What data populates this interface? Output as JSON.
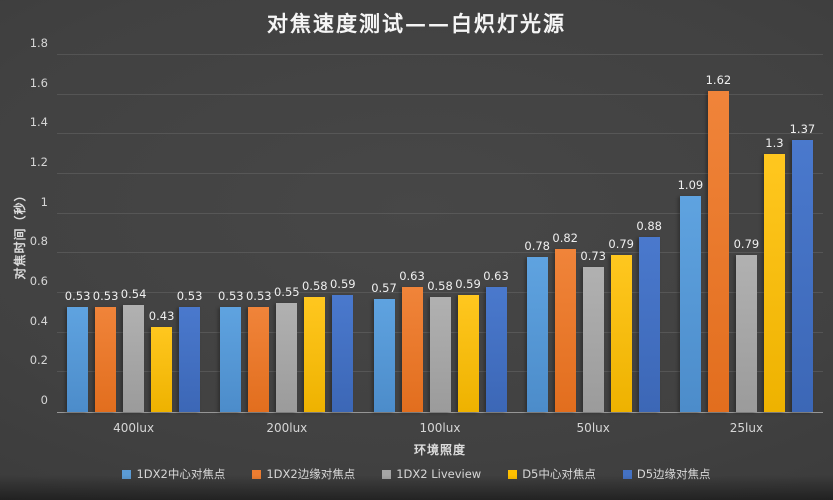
{
  "title": "对焦速度测试——白炽灯光源",
  "colors": {
    "background": "#3f3f3f",
    "title_text": "#f5f5f5",
    "axis_text": "#d6d6d6",
    "gridline": "rgba(255,255,255,0.10)",
    "axis_line": "#969696",
    "data_label": "#efefef"
  },
  "chart_data": {
    "type": "bar",
    "title": "对焦速度测试——白炽灯光源",
    "xlabel": "环境照度",
    "ylabel": "对焦时间（秒）",
    "ylim": [
      0,
      1.8
    ],
    "ytick_step": 0.2,
    "grid": true,
    "legend_position": "bottom",
    "data_labels": true,
    "categories": [
      "400lux",
      "200lux",
      "100lux",
      "50lux",
      "25lux"
    ],
    "series": [
      {
        "name": "1DX2中心对焦点",
        "color": "#5b9bd5",
        "color_top": "#5fa3e0",
        "color_bottom": "#4c8cca",
        "values": [
          0.53,
          0.53,
          0.57,
          0.78,
          1.09
        ]
      },
      {
        "name": "1DX2边缘对焦点",
        "color": "#ed7d31",
        "color_top": "#f0843a",
        "color_bottom": "#e26e1e",
        "values": [
          0.53,
          0.53,
          0.63,
          0.82,
          1.62
        ]
      },
      {
        "name": "1DX2 Liveview",
        "color": "#a5a5a5",
        "color_top": "#b1b1b1",
        "color_bottom": "#9b9b9b",
        "values": [
          0.54,
          0.55,
          0.58,
          0.73,
          0.79
        ]
      },
      {
        "name": "D5中心对焦点",
        "color": "#ffc000",
        "color_top": "#ffc71f",
        "color_bottom": "#eeb200",
        "values": [
          0.43,
          0.58,
          0.59,
          0.79,
          1.3
        ]
      },
      {
        "name": "D5边缘对焦点",
        "color": "#4472c4",
        "color_top": "#4a79cd",
        "color_bottom": "#3c67b6",
        "values": [
          0.53,
          0.59,
          0.63,
          0.88,
          1.37
        ]
      }
    ]
  }
}
